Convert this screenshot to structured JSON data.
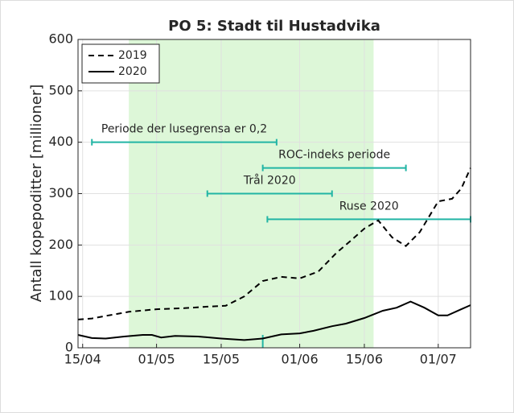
{
  "chart_data": {
    "type": "line",
    "title": "PO 5: Stadt til Hustadvika",
    "y_label": "Antall kopepoditter [millioner]",
    "xlim": [
      "14/04",
      "08/07"
    ],
    "xticks": [
      "15/04",
      "01/05",
      "15/05",
      "01/06",
      "15/06",
      "01/07"
    ],
    "ylim": [
      0,
      600
    ],
    "yticks": [
      0,
      100,
      200,
      300,
      400,
      500,
      600
    ],
    "grid": true,
    "legend": "upper-left",
    "shaded": {
      "x": [
        "25/04",
        "17/06"
      ],
      "color": "#ddf7d8"
    },
    "annotations": [
      {
        "text": "Periode der lusegrensa er 0,2",
        "y": 400,
        "x": [
          "17/04",
          "27/05"
        ]
      },
      {
        "text": "ROC-indeks periode",
        "y": 350,
        "x": [
          "24/05",
          "24/06"
        ]
      },
      {
        "text": "Trål 2020",
        "y": 300,
        "x": [
          "12/05",
          "08/06"
        ]
      },
      {
        "text": "Ruse 2020",
        "y": 250,
        "x": [
          "25/05",
          "08/07"
        ]
      }
    ],
    "annotation_color": "#22b5a5",
    "series": [
      {
        "name": "2019",
        "color": "#000000",
        "dash": true,
        "x": [
          "14/04",
          "17/04",
          "20/04",
          "25/04",
          "01/05",
          "07/05",
          "12/05",
          "16/05",
          "20/05",
          "24/05",
          "28/05",
          "01/06",
          "05/06",
          "09/06",
          "12/06",
          "15/06",
          "18/06",
          "21/06",
          "24/06",
          "27/06",
          "01/07",
          "04/07",
          "06/07",
          "08/07"
        ],
        "values": [
          55,
          57,
          62,
          70,
          75,
          77,
          80,
          82,
          100,
          130,
          138,
          135,
          148,
          185,
          208,
          232,
          248,
          215,
          198,
          225,
          285,
          290,
          310,
          350
        ]
      },
      {
        "name": "2020",
        "color": "#000000",
        "dash": false,
        "x": [
          "14/04",
          "17/04",
          "20/04",
          "24/04",
          "28/04",
          "30/04",
          "02/05",
          "05/05",
          "10/05",
          "15/05",
          "20/05",
          "24/05",
          "28/05",
          "01/06",
          "04/06",
          "08/06",
          "11/06",
          "15/06",
          "19/06",
          "22/06",
          "25/06",
          "28/06",
          "01/07",
          "03/07",
          "06/07",
          "08/07"
        ],
        "values": [
          25,
          19,
          18,
          22,
          25,
          25,
          20,
          23,
          22,
          18,
          15,
          18,
          26,
          28,
          33,
          42,
          47,
          58,
          72,
          78,
          90,
          78,
          63,
          63,
          75,
          83
        ]
      }
    ]
  }
}
